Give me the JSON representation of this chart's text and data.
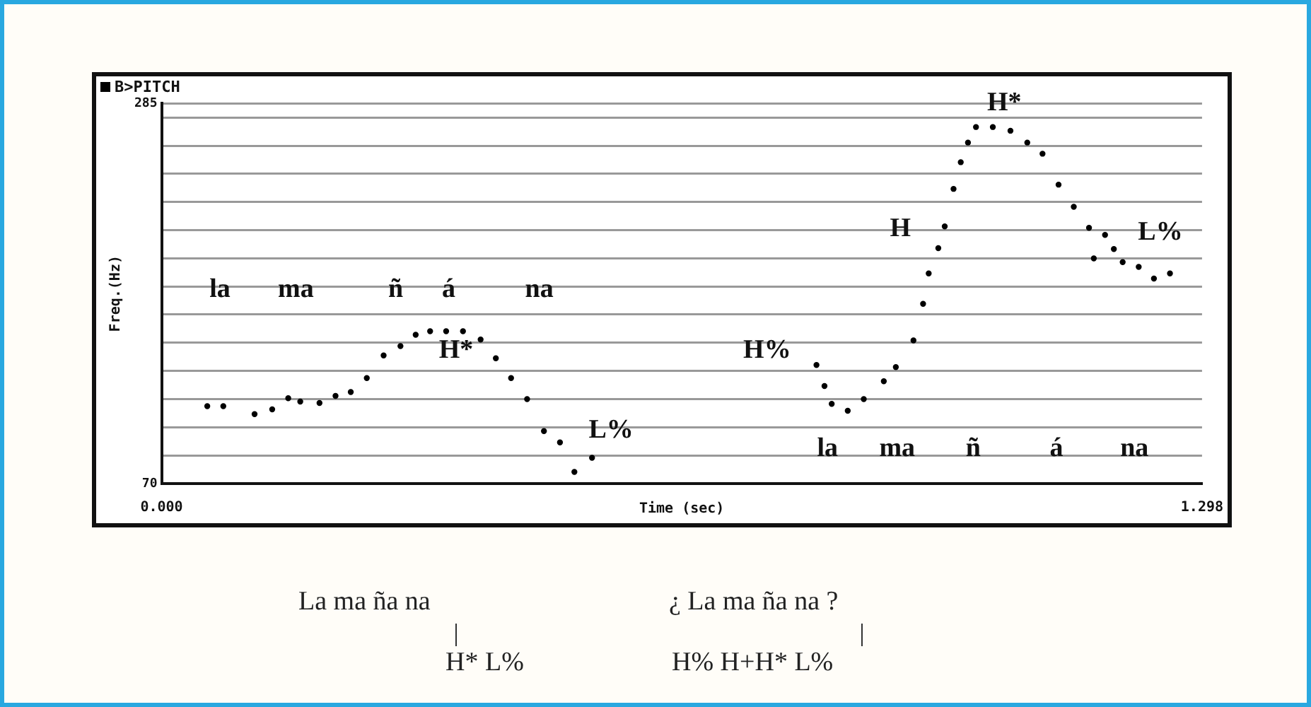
{
  "chart_data": {
    "type": "scatter",
    "title": "B>PITCH",
    "xlabel": "Time (sec)",
    "ylabel": "Freq.(Hz)",
    "xlim": [
      0,
      1.298
    ],
    "xticks": [
      {
        "value": 0,
        "label": "0.000"
      },
      {
        "value": 1.298,
        "label": "1.298"
      }
    ],
    "ylim": [
      70,
      285
    ],
    "yticks": [
      70,
      {
        "value": 85.9,
        "label": null
      },
      {
        "value": 101.9,
        "label": null
      },
      {
        "value": 117.8,
        "label": null
      },
      {
        "value": 133.7,
        "label": null
      },
      {
        "value": 149.6,
        "label": null
      },
      {
        "value": 165.6,
        "label": null
      },
      {
        "value": 181.5,
        "label": null
      },
      {
        "value": 197.4,
        "label": null
      },
      {
        "value": 213.3,
        "label": null
      },
      {
        "value": 229.3,
        "label": null
      },
      {
        "value": 245.2,
        "label": null
      },
      {
        "value": 261.1,
        "label": null
      },
      {
        "value": 277.0,
        "label": null
      },
      285
    ],
    "grid": "y",
    "legend": false,
    "marker": "circle",
    "series": [
      {
        "color": "#000000",
        "x": [
          0.057,
          0.077,
          0.116,
          0.138,
          0.158,
          0.173,
          0.197,
          0.217,
          0.236,
          0.256,
          0.277,
          0.298,
          0.317,
          0.335,
          0.355,
          0.376,
          0.398,
          0.417,
          0.436,
          0.456,
          0.477,
          0.497,
          0.515,
          0.537,
          0.817,
          0.827,
          0.836,
          0.856,
          0.876,
          0.901,
          0.916,
          0.938,
          0.95,
          0.957,
          0.969,
          0.977,
          0.988,
          0.997,
          1.006,
          1.016,
          1.037,
          1.059,
          1.08,
          1.099,
          1.119,
          1.138,
          1.157,
          1.163,
          1.177,
          1.188,
          1.199,
          1.219,
          1.238,
          1.258
        ],
        "values": [
          113.8,
          113.8,
          109.3,
          112.0,
          118.3,
          116.4,
          115.6,
          119.6,
          121.8,
          129.7,
          142.5,
          147.8,
          154.2,
          156.2,
          156.2,
          156.2,
          151.5,
          140.9,
          129.7,
          117.8,
          99.7,
          93.3,
          76.6,
          84.6,
          137.1,
          125.2,
          115.1,
          111.2,
          117.8,
          127.9,
          135.9,
          151.0,
          171.7,
          188.9,
          203.2,
          215.5,
          236.7,
          251.8,
          262.9,
          271.7,
          271.7,
          269.6,
          262.9,
          256.6,
          239.1,
          226.6,
          214.7,
          197.4,
          210.7,
          202.7,
          195.3,
          192.6,
          186.0,
          188.9
        ]
      }
    ],
    "annotations": [
      "la",
      "ma",
      "ñ",
      "á",
      "na",
      "H*",
      "L%",
      "H%",
      "H",
      "H*",
      "L%",
      "la",
      "ma",
      "ñ",
      "á",
      "na",
      "La ma ña na",
      "H* L%",
      "¿ La ma ña na ?",
      "H% H+H* L%"
    ]
  }
}
